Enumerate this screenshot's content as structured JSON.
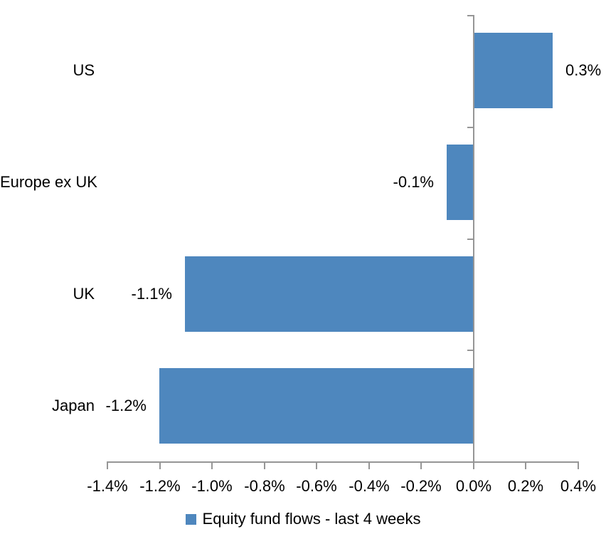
{
  "chart_data": {
    "type": "bar",
    "orientation": "horizontal",
    "title": "",
    "xlabel": "",
    "ylabel": "",
    "categories": [
      "US",
      "Europe ex UK",
      "UK",
      "Japan"
    ],
    "series": [
      {
        "name": "Equity fund flows - last 4 weeks",
        "values": [
          0.3,
          -0.1,
          -1.1,
          -1.2
        ],
        "value_labels": [
          "0.3%",
          "-0.1%",
          "-1.1%",
          "-1.2%"
        ]
      }
    ],
    "xlim": [
      -1.4,
      0.4
    ],
    "x_tick_step": 0.2,
    "x_tick_labels": [
      "-1.4%",
      "-1.2%",
      "-1.0%",
      "-0.8%",
      "-0.6%",
      "-0.4%",
      "-0.2%",
      "0.0%",
      "0.2%",
      "0.4%"
    ],
    "grid": false,
    "legend_position": "bottom",
    "colors": {
      "bar": "#4E87BE",
      "axis": "#969696",
      "text": "#000000",
      "background": "#FFFFFF"
    }
  },
  "legend": {
    "series_label": "Equity fund flows - last 4 weeks",
    "swatch_color": "#4E87BE"
  }
}
